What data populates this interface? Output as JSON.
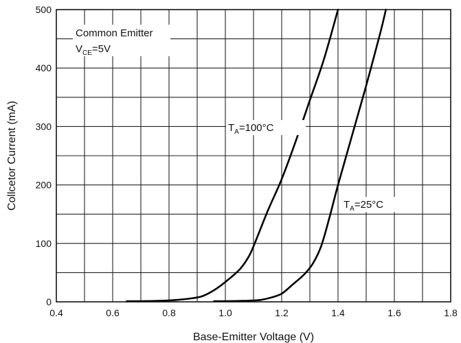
{
  "chart_data": {
    "type": "line",
    "xlabel": "Base-Emitter Voltage (V)",
    "ylabel": "Collcetor Current (mA)",
    "xlim": [
      0.4,
      1.8
    ],
    "ylim": [
      0,
      500
    ],
    "x_ticks": [
      "0.4",
      "0.6",
      "0.8",
      "1.0",
      "1.2",
      "1.4",
      "1.6",
      "1.8"
    ],
    "y_ticks": [
      "0",
      "100",
      "200",
      "300",
      "400",
      "500"
    ],
    "x_grid_step": 0.1,
    "y_grid_step": 50,
    "grid": true,
    "condition": {
      "line1": "Common Emitter",
      "line2_main": "V",
      "line2_sub": "CE",
      "line2_rest": "=5V"
    },
    "series": [
      {
        "name": "TA=100°C",
        "label_main": "T",
        "label_sub": "A",
        "label_rest": "=100°C",
        "x": [
          0.65,
          0.75,
          0.82,
          0.88,
          0.92,
          0.96,
          1.0,
          1.05,
          1.08,
          1.1,
          1.15,
          1.2,
          1.25,
          1.3,
          1.35,
          1.4
        ],
        "y": [
          1,
          1.5,
          3,
          6,
          10,
          20,
          34,
          55,
          75,
          95,
          155,
          210,
          275,
          345,
          415,
          500
        ]
      },
      {
        "name": "TA=25°C",
        "label_main": "T",
        "label_sub": "A",
        "label_rest": "=25°C",
        "x": [
          0.96,
          1.05,
          1.12,
          1.16,
          1.2,
          1.24,
          1.28,
          1.31,
          1.34,
          1.37,
          1.4,
          1.45,
          1.5,
          1.55,
          1.57
        ],
        "y": [
          1,
          1.5,
          3,
          7,
          14,
          30,
          47,
          65,
          95,
          145,
          200,
          285,
          370,
          460,
          500
        ]
      }
    ]
  }
}
